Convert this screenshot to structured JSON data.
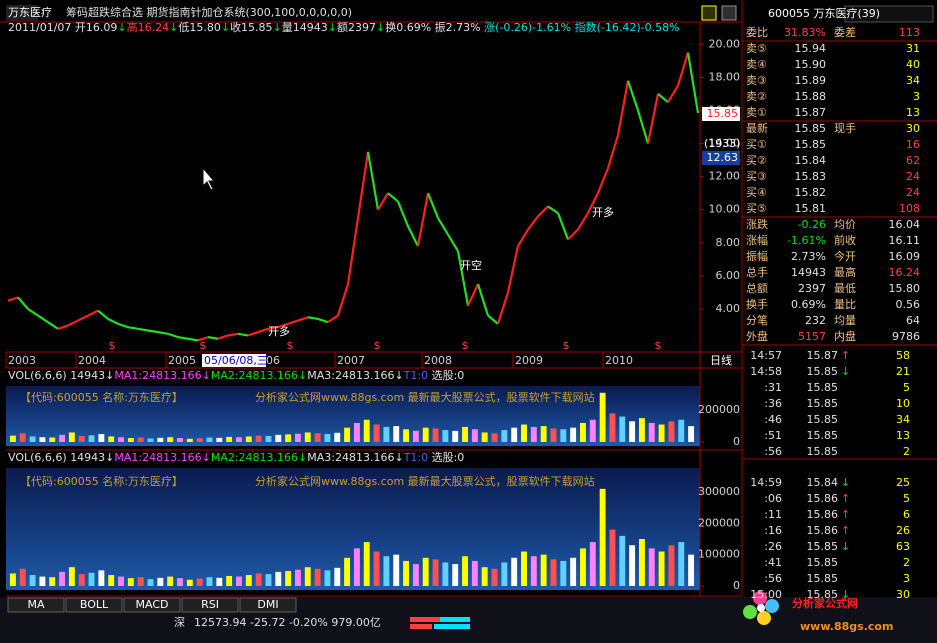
{
  "title_bar": {
    "stock": "万东医疗",
    "indicator": "筹码超跌综合选 期货指南针加仓系统(300,100,0,0,0,0,0)"
  },
  "palette": {
    "w": "#e0e0e0",
    "r": "#ff4040",
    "g": "#00e000",
    "y": "#ffff00",
    "c": "#00e0e0",
    "b": "#4060ff",
    "m": "#ff40ff",
    "o": "#f0c080"
  },
  "info_line": [
    {
      "t": "2011/01/07 ",
      "c": "w"
    },
    {
      "t": "开16.09",
      "c": "w"
    },
    {
      "t": "↓",
      "c": "g"
    },
    {
      "t": "高16.24",
      "c": "r"
    },
    {
      "t": "↓",
      "c": "g"
    },
    {
      "t": "低15.80",
      "c": "w"
    },
    {
      "t": "↓",
      "c": "g"
    },
    {
      "t": "收15.85",
      "c": "w"
    },
    {
      "t": "↓",
      "c": "g"
    },
    {
      "t": "量14943",
      "c": "w"
    },
    {
      "t": "↓",
      "c": "g"
    },
    {
      "t": "额2397",
      "c": "w"
    },
    {
      "t": "↓",
      "c": "g"
    },
    {
      "t": "换0.69% ",
      "c": "w"
    },
    {
      "t": "振2.73% ",
      "c": "w"
    },
    {
      "t": "涨(-0.26)-1.61% ",
      "c": "c"
    },
    {
      "t": "指数(-16.42)-0.58%",
      "c": "c"
    }
  ],
  "chart_data": [
    {
      "type": "line",
      "up_color": "#ff2020",
      "down_color": "#20e020",
      "values": [
        4.5,
        4.7,
        4.0,
        3.6,
        3.2,
        2.8,
        3.0,
        3.3,
        3.6,
        3.9,
        3.4,
        3.1,
        2.9,
        2.8,
        2.7,
        2.6,
        2.5,
        2.3,
        2.2,
        2.1,
        2.3,
        2.2,
        2.4,
        2.5,
        2.4,
        2.6,
        2.8,
        2.9,
        3.1,
        3.3,
        3.5,
        3.4,
        3.2,
        3.6,
        5.5,
        9.5,
        13.5,
        10.0,
        11.0,
        10.5,
        9.0,
        7.8,
        11.0,
        9.5,
        8.5,
        7.5,
        4.2,
        5.5,
        3.6,
        3.1,
        5.0,
        7.8,
        8.8,
        9.6,
        10.2,
        9.8,
        8.2,
        8.8,
        9.8,
        11.0,
        12.5,
        14.5,
        17.8,
        16.0,
        14.0,
        17.0,
        16.5,
        17.5,
        19.5,
        15.85
      ],
      "ylim": [
        1.4,
        20.5
      ],
      "yticks": [
        {
          "value": 4,
          "label": "4.00"
        },
        {
          "value": 6,
          "label": "6.00"
        },
        {
          "value": 8,
          "label": "8.00"
        },
        {
          "value": 10,
          "label": "10.00"
        },
        {
          "value": 12,
          "label": "12.00"
        },
        {
          "value": 14,
          "label": "14.00"
        },
        {
          "value": 16,
          "label": "16.00"
        },
        {
          "value": 18,
          "label": "18.00"
        },
        {
          "value": 20,
          "label": "20.00"
        }
      ],
      "x_labels": [
        "2003",
        "2004",
        "2005",
        "2006",
        "2007",
        "2008",
        "2009",
        "2010"
      ],
      "cursor_label": "05/06/08,三",
      "period": "日线",
      "marker": "$",
      "annotations": [
        "开多",
        "开空",
        "开多"
      ],
      "price_tag": "15.85",
      "cost_tag": "(1933)",
      "cost_price": "12.63",
      "grid": false
    },
    {
      "type": "bar",
      "header": [
        {
          "t": "VOL(6,6,6) ",
          "c": "w"
        },
        {
          "t": "14943↓",
          "c": "w"
        },
        {
          "t": "MA1:24813.166↓",
          "c": "m"
        },
        {
          "t": "MA2:24813.166↓",
          "c": "g"
        },
        {
          "t": "MA3:24813.166↓",
          "c": "w"
        },
        {
          "t": "T1:0 ",
          "c": "b"
        },
        {
          "t": "选股:0",
          "c": "w"
        }
      ],
      "watermark": [
        "【代码:600055 名称:万东医疗】",
        "分析家公式网www.88gs.com 最新最大股票公式，股票软件下载网站"
      ],
      "values": [
        40000,
        55000,
        35000,
        30000,
        28000,
        45000,
        60000,
        38000,
        42000,
        50000,
        35000,
        30000,
        25000,
        28000,
        22000,
        26000,
        30000,
        25000,
        20000,
        24000,
        28000,
        26000,
        32000,
        30000,
        35000,
        40000,
        38000,
        45000,
        48000,
        52000,
        60000,
        55000,
        50000,
        58000,
        90000,
        120000,
        140000,
        110000,
        95000,
        100000,
        80000,
        70000,
        90000,
        85000,
        75000,
        70000,
        95000,
        80000,
        60000,
        55000,
        75000,
        90000,
        110000,
        95000,
        100000,
        85000,
        80000,
        90000,
        120000,
        140000,
        310000,
        180000,
        160000,
        130000,
        150000,
        120000,
        110000,
        130000,
        140000,
        100000
      ],
      "bar_colors": [
        "#ffff00",
        "#ff5050",
        "#60d0ff",
        "#ffffff",
        "#ffff00",
        "#ff80ff"
      ],
      "ylim": [
        0,
        340000
      ],
      "yticks": [
        0,
        200000
      ]
    },
    {
      "type": "bar",
      "header": [
        {
          "t": "VOL(6,6,6) ",
          "c": "w"
        },
        {
          "t": "14943↓",
          "c": "w"
        },
        {
          "t": "MA1:24813.166↓",
          "c": "m"
        },
        {
          "t": "MA2:24813.166↓",
          "c": "g"
        },
        {
          "t": "MA3:24813.166↓",
          "c": "w"
        },
        {
          "t": "T1:0 ",
          "c": "b"
        },
        {
          "t": "选股:0",
          "c": "w"
        }
      ],
      "watermark": [
        "【代码:600055 名称:万东医疗】",
        "分析家公式网www.88gs.com 最新最大股票公式，股票软件下载网站"
      ],
      "values": [
        40000,
        55000,
        35000,
        30000,
        28000,
        45000,
        60000,
        38000,
        42000,
        50000,
        35000,
        30000,
        25000,
        28000,
        22000,
        26000,
        30000,
        25000,
        20000,
        24000,
        28000,
        26000,
        32000,
        30000,
        35000,
        40000,
        38000,
        45000,
        48000,
        52000,
        60000,
        55000,
        50000,
        58000,
        90000,
        120000,
        140000,
        110000,
        95000,
        100000,
        80000,
        70000,
        90000,
        85000,
        75000,
        70000,
        95000,
        80000,
        60000,
        55000,
        75000,
        90000,
        110000,
        95000,
        100000,
        85000,
        80000,
        90000,
        120000,
        140000,
        310000,
        180000,
        160000,
        130000,
        150000,
        120000,
        110000,
        130000,
        140000,
        100000
      ],
      "bar_colors": [
        "#ffff00",
        "#ff5050",
        "#60d0ff",
        "#ffffff",
        "#ffff00",
        "#ff80ff"
      ],
      "ylim": [
        0,
        420000
      ],
      "yticks": [
        0,
        100000,
        200000,
        300000
      ]
    }
  ],
  "quote": {
    "header": "600055 万东医疗(39)",
    "rows": [
      [
        {
          "t": "委比",
          "c": "o"
        },
        {
          "t": "31.83%",
          "c": "r"
        },
        {
          "t": "委差",
          "c": "o"
        },
        {
          "t": "113",
          "c": "r"
        }
      ],
      [
        {
          "t": "卖⑤",
          "c": "o"
        },
        {
          "t": "15.94",
          "c": "w"
        },
        null,
        {
          "t": "31",
          "c": "y"
        }
      ],
      [
        {
          "t": "卖④",
          "c": "o"
        },
        {
          "t": "15.90",
          "c": "w"
        },
        null,
        {
          "t": "40",
          "c": "y"
        }
      ],
      [
        {
          "t": "卖③",
          "c": "o"
        },
        {
          "t": "15.89",
          "c": "w"
        },
        null,
        {
          "t": "34",
          "c": "y"
        }
      ],
      [
        {
          "t": "卖②",
          "c": "o"
        },
        {
          "t": "15.88",
          "c": "w"
        },
        null,
        {
          "t": "3",
          "c": "y"
        }
      ],
      [
        {
          "t": "卖①",
          "c": "o"
        },
        {
          "t": "15.87",
          "c": "w"
        },
        null,
        {
          "t": "13",
          "c": "y"
        }
      ],
      [
        {
          "t": "最新",
          "c": "o"
        },
        {
          "t": "15.85",
          "c": "w"
        },
        {
          "t": "现手",
          "c": "o"
        },
        {
          "t": "30",
          "c": "y"
        }
      ],
      [
        {
          "t": "买①",
          "c": "o"
        },
        {
          "t": "15.85",
          "c": "w"
        },
        null,
        {
          "t": "16",
          "c": "r"
        }
      ],
      [
        {
          "t": "买②",
          "c": "o"
        },
        {
          "t": "15.84",
          "c": "w"
        },
        null,
        {
          "t": "62",
          "c": "r"
        }
      ],
      [
        {
          "t": "买③",
          "c": "o"
        },
        {
          "t": "15.83",
          "c": "w"
        },
        null,
        {
          "t": "24",
          "c": "r"
        }
      ],
      [
        {
          "t": "买④",
          "c": "o"
        },
        {
          "t": "15.82",
          "c": "w"
        },
        null,
        {
          "t": "24",
          "c": "r"
        }
      ],
      [
        {
          "t": "买⑤",
          "c": "o"
        },
        {
          "t": "15.81",
          "c": "w"
        },
        null,
        {
          "t": "108",
          "c": "r"
        }
      ],
      [
        {
          "t": "涨跌",
          "c": "o"
        },
        {
          "t": "-0.26",
          "c": "g"
        },
        {
          "t": "均价",
          "c": "o"
        },
        {
          "t": "16.04",
          "c": "w"
        }
      ],
      [
        {
          "t": "涨幅",
          "c": "o"
        },
        {
          "t": "-1.61%",
          "c": "g"
        },
        {
          "t": "前收",
          "c": "o"
        },
        {
          "t": "16.11",
          "c": "w"
        }
      ],
      [
        {
          "t": "振幅",
          "c": "o"
        },
        {
          "t": "2.73%",
          "c": "w"
        },
        {
          "t": "今开",
          "c": "o"
        },
        {
          "t": "16.09",
          "c": "w"
        }
      ],
      [
        {
          "t": "总手",
          "c": "o"
        },
        {
          "t": "14943",
          "c": "w"
        },
        {
          "t": "最高",
          "c": "o"
        },
        {
          "t": "16.24",
          "c": "r"
        }
      ],
      [
        {
          "t": "总额",
          "c": "o"
        },
        {
          "t": "2397",
          "c": "w"
        },
        {
          "t": "最低",
          "c": "o"
        },
        {
          "t": "15.80",
          "c": "w"
        }
      ],
      [
        {
          "t": "换手",
          "c": "o"
        },
        {
          "t": "0.69%",
          "c": "w"
        },
        {
          "t": "量比",
          "c": "o"
        },
        {
          "t": "0.56",
          "c": "w"
        }
      ],
      [
        {
          "t": "分笔",
          "c": "o"
        },
        {
          "t": "232",
          "c": "w"
        },
        {
          "t": "均量",
          "c": "o"
        },
        {
          "t": "64",
          "c": "w"
        }
      ],
      [
        {
          "t": "外盘",
          "c": "o"
        },
        {
          "t": "5157",
          "c": "r"
        },
        {
          "t": "内盘",
          "c": "o"
        },
        {
          "t": "9786",
          "c": "w"
        }
      ]
    ],
    "trades": [
      {
        "time": "14:57",
        "price": "15.87",
        "dir": "↑",
        "c": "r",
        "vol": "58"
      },
      {
        "time": "14:58",
        "price": "15.85",
        "dir": "↓",
        "c": "g",
        "vol": "21"
      },
      {
        "time": ":31",
        "price": "15.85",
        "vol": "5"
      },
      {
        "time": ":36",
        "price": "15.85",
        "vol": "10"
      },
      {
        "time": ":46",
        "price": "15.85",
        "vol": "34"
      },
      {
        "time": ":51",
        "price": "15.85",
        "vol": "13"
      },
      {
        "time": ":56",
        "price": "15.85",
        "vol": "2"
      },
      {
        "time": "14:59",
        "price": "15.84",
        "dir": "↓",
        "c": "g",
        "vol": "25"
      },
      {
        "time": ":06",
        "price": "15.86",
        "dir": "↑",
        "c": "r",
        "vol": "5"
      },
      {
        "time": ":11",
        "price": "15.86",
        "dir": "↑",
        "c": "r",
        "vol": "6"
      },
      {
        "time": ":16",
        "price": "15.86",
        "dir": "↑",
        "c": "r",
        "vol": "26"
      },
      {
        "time": ":26",
        "price": "15.85",
        "dir": "↓",
        "c": "g",
        "vol": "63"
      },
      {
        "time": ":41",
        "price": "15.85",
        "vol": "2"
      },
      {
        "time": ":56",
        "price": "15.85",
        "vol": "3"
      },
      {
        "time": "15:00",
        "price": "15.85",
        "dir": "↓",
        "c": "g",
        "vol": "30"
      }
    ]
  },
  "tabs": [
    "MA",
    "BOLL",
    "MACD",
    "RSI",
    "DMI"
  ],
  "status": {
    "market": "深",
    "text": "12573.94 -25.72 -0.20% 979.00亿"
  },
  "logo": {
    "name": "分析家公式网",
    "url": "www.88gs.com"
  }
}
